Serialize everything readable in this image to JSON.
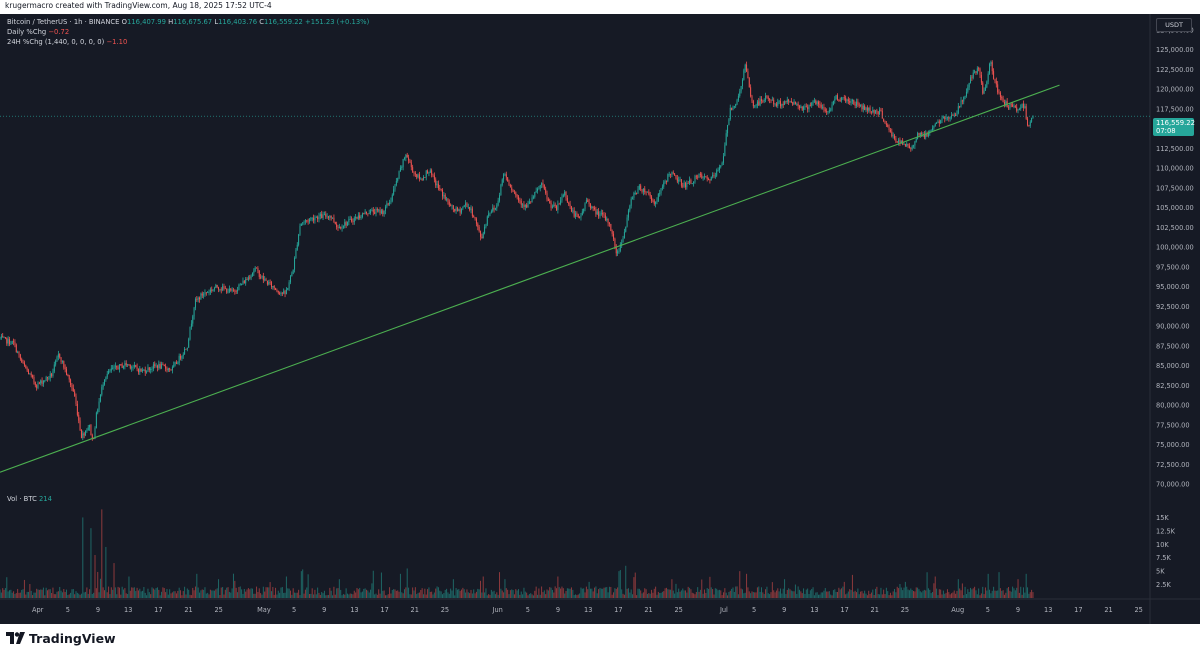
{
  "header": {
    "credit": "krugermacro created with TradingView.com, Aug 18, 2025 17:52 UTC-4"
  },
  "legend": {
    "symbol": "Bitcoin / TetherUS · 1h · BINANCE",
    "o_label": "O",
    "o_value": "116,407.99",
    "h_label": "H",
    "h_value": "116,675.67",
    "l_label": "L",
    "l_value": "116,403.76",
    "c_label": "C",
    "c_value": "116,559.22",
    "change": "+151.23 (+0.13%)",
    "daily_label": "Daily %Chg",
    "daily_value": "−0.72",
    "h24_label": "24H %Chg (1,440, 0, 0, 0, 0)",
    "h24_value": "−1.10",
    "vol_label": "Vol · BTC",
    "vol_value": "214"
  },
  "currency_badge": "USDT",
  "last_price": {
    "price": "116,559.22",
    "countdown": "07:08"
  },
  "footer": {
    "brand": "TradingView"
  },
  "colors": {
    "background": "#161a25",
    "up": "#26a69a",
    "down": "#ef5350",
    "trendline": "#4caf50",
    "axis_text": "#b2b5be"
  },
  "chart_data": {
    "type": "candlestick",
    "title": "Bitcoin / TetherUS · 1h · BINANCE",
    "xlabel": "",
    "ylabel": "",
    "y_axis_side": "right",
    "ylim": [
      69000,
      129500
    ],
    "y_ticks": [
      70000,
      72500,
      75000,
      77500,
      80000,
      82500,
      85000,
      87500,
      90000,
      92500,
      95000,
      97500,
      100000,
      102500,
      105000,
      107500,
      110000,
      112500,
      115000,
      117500,
      120000,
      122500,
      125000,
      127500
    ],
    "y_tick_labels": [
      "70,000.00",
      "72,500.00",
      "75,000.00",
      "77,500.00",
      "80,000.00",
      "82,500.00",
      "85,000.00",
      "87,500.00",
      "90,000.00",
      "92,500.00",
      "95,000.00",
      "97,500.00",
      "100,000.00",
      "102,500.00",
      "105,000.00",
      "107,500.00",
      "110,000.00",
      "112,500.00",
      "115,000.00",
      "117,500.00",
      "120,000.00",
      "122,500.00",
      "125,000.00",
      "127,500.00"
    ],
    "x_ticks": [
      {
        "day": 0,
        "label": "Apr"
      },
      {
        "day": 4,
        "label": "5"
      },
      {
        "day": 8,
        "label": "9"
      },
      {
        "day": 12,
        "label": "13"
      },
      {
        "day": 16,
        "label": "17"
      },
      {
        "day": 20,
        "label": "21"
      },
      {
        "day": 24,
        "label": "25"
      },
      {
        "day": 30,
        "label": "May"
      },
      {
        "day": 34,
        "label": "5"
      },
      {
        "day": 38,
        "label": "9"
      },
      {
        "day": 42,
        "label": "13"
      },
      {
        "day": 46,
        "label": "17"
      },
      {
        "day": 50,
        "label": "21"
      },
      {
        "day": 54,
        "label": "25"
      },
      {
        "day": 61,
        "label": "Jun"
      },
      {
        "day": 65,
        "label": "5"
      },
      {
        "day": 69,
        "label": "9"
      },
      {
        "day": 73,
        "label": "13"
      },
      {
        "day": 77,
        "label": "17"
      },
      {
        "day": 81,
        "label": "21"
      },
      {
        "day": 85,
        "label": "25"
      },
      {
        "day": 91,
        "label": "Jul"
      },
      {
        "day": 95,
        "label": "5"
      },
      {
        "day": 99,
        "label": "9"
      },
      {
        "day": 103,
        "label": "13"
      },
      {
        "day": 107,
        "label": "17"
      },
      {
        "day": 111,
        "label": "21"
      },
      {
        "day": 115,
        "label": "25"
      },
      {
        "day": 122,
        "label": "Aug"
      },
      {
        "day": 126,
        "label": "5"
      },
      {
        "day": 130,
        "label": "9"
      },
      {
        "day": 134,
        "label": "13"
      },
      {
        "day": 138,
        "label": "17"
      },
      {
        "day": 142,
        "label": "21"
      },
      {
        "day": 146,
        "label": "25"
      }
    ],
    "x_day_range": [
      -5,
      147.5
    ],
    "price_path": [
      [
        -5,
        88500
      ],
      [
        -3,
        87800
      ],
      [
        -2,
        85500
      ],
      [
        0,
        82500
      ],
      [
        2,
        83800
      ],
      [
        3,
        86500
      ],
      [
        4,
        84000
      ],
      [
        5,
        81500
      ],
      [
        6,
        76000
      ],
      [
        7,
        77500
      ],
      [
        7.5,
        75300
      ],
      [
        8,
        79000
      ],
      [
        9,
        83500
      ],
      [
        10,
        84500
      ],
      [
        12,
        85200
      ],
      [
        14,
        84300
      ],
      [
        16,
        85000
      ],
      [
        18,
        84500
      ],
      [
        20,
        87500
      ],
      [
        21,
        93000
      ],
      [
        22,
        94000
      ],
      [
        24,
        95000
      ],
      [
        26,
        94300
      ],
      [
        28,
        96000
      ],
      [
        29,
        97300
      ],
      [
        30,
        96000
      ],
      [
        32,
        94500
      ],
      [
        33,
        94000
      ],
      [
        34,
        97000
      ],
      [
        35,
        103000
      ],
      [
        37,
        103800
      ],
      [
        39,
        104000
      ],
      [
        40,
        102500
      ],
      [
        42,
        103500
      ],
      [
        44,
        104500
      ],
      [
        46,
        104500
      ],
      [
        47,
        106000
      ],
      [
        48,
        109000
      ],
      [
        49,
        111800
      ],
      [
        50,
        109500
      ],
      [
        51,
        108500
      ],
      [
        52,
        109800
      ],
      [
        53,
        108000
      ],
      [
        55,
        105000
      ],
      [
        56,
        104500
      ],
      [
        57,
        105500
      ],
      [
        58,
        104000
      ],
      [
        59,
        101000
      ],
      [
        60,
        104500
      ],
      [
        61,
        105000
      ],
      [
        62,
        109500
      ],
      [
        63,
        107500
      ],
      [
        64,
        106000
      ],
      [
        65,
        105000
      ],
      [
        67,
        108000
      ],
      [
        68,
        105500
      ],
      [
        69,
        104800
      ],
      [
        70,
        107000
      ],
      [
        71,
        104500
      ],
      [
        72,
        103500
      ],
      [
        73,
        106000
      ],
      [
        74,
        104500
      ],
      [
        75,
        104000
      ],
      [
        76,
        103000
      ],
      [
        77,
        99000
      ],
      [
        78,
        102000
      ],
      [
        79,
        106500
      ],
      [
        80,
        107500
      ],
      [
        81,
        107000
      ],
      [
        82,
        105500
      ],
      [
        83,
        107500
      ],
      [
        84,
        109500
      ],
      [
        85,
        108500
      ],
      [
        86,
        107800
      ],
      [
        88,
        109000
      ],
      [
        89,
        108500
      ],
      [
        90,
        109000
      ],
      [
        91,
        111000
      ],
      [
        92,
        117500
      ],
      [
        93,
        118500
      ],
      [
        94,
        123000
      ],
      [
        95,
        117800
      ],
      [
        97,
        119000
      ],
      [
        98,
        118000
      ],
      [
        100,
        118500
      ],
      [
        102,
        117500
      ],
      [
        103,
        118500
      ],
      [
        105,
        117000
      ],
      [
        106,
        119000
      ],
      [
        108,
        118500
      ],
      [
        110,
        117500
      ],
      [
        112,
        117000
      ],
      [
        113,
        114800
      ],
      [
        114,
        113500
      ],
      [
        116,
        112500
      ],
      [
        117,
        114500
      ],
      [
        118,
        114000
      ],
      [
        119,
        115500
      ],
      [
        121,
        116500
      ],
      [
        122,
        117000
      ],
      [
        123,
        119000
      ],
      [
        124,
        121500
      ],
      [
        125,
        122500
      ],
      [
        125.5,
        119500
      ],
      [
        126,
        120500
      ],
      [
        126.5,
        124200
      ],
      [
        127,
        121000
      ],
      [
        128,
        118500
      ],
      [
        129,
        117800
      ],
      [
        130,
        117500
      ],
      [
        131,
        118000
      ],
      [
        131.5,
        115200
      ],
      [
        132,
        116560
      ]
    ],
    "trendline": {
      "from": {
        "day": -5,
        "price": 71500
      },
      "to": {
        "day": 135.5,
        "price": 120500
      }
    },
    "volume": {
      "ylim": [
        0,
        17500
      ],
      "y_ticks": [
        2500,
        5000,
        7500,
        10000,
        12500,
        15000
      ],
      "y_tick_labels": [
        "2.5K",
        "5K",
        "7.5K",
        "10K",
        "12.5K",
        "15K"
      ],
      "baseline": 1200,
      "spikes": [
        {
          "day": 6,
          "value": 15000
        },
        {
          "day": 7,
          "value": 13000
        },
        {
          "day": 7.5,
          "value": 8000
        },
        {
          "day": 8.5,
          "value": 16500
        },
        {
          "day": 9,
          "value": 9500
        },
        {
          "day": 10,
          "value": 6500
        },
        {
          "day": 12,
          "value": 4000
        },
        {
          "day": 21,
          "value": 4500
        },
        {
          "day": 24,
          "value": 3500
        },
        {
          "day": 33,
          "value": 4000
        },
        {
          "day": 35,
          "value": 5000
        },
        {
          "day": 40,
          "value": 3500
        },
        {
          "day": 48,
          "value": 4500
        },
        {
          "day": 49,
          "value": 5500
        },
        {
          "day": 55,
          "value": 3500
        },
        {
          "day": 59,
          "value": 4000
        },
        {
          "day": 62,
          "value": 3500
        },
        {
          "day": 69,
          "value": 4000
        },
        {
          "day": 73,
          "value": 3000
        },
        {
          "day": 77,
          "value": 5000
        },
        {
          "day": 78,
          "value": 6000
        },
        {
          "day": 84,
          "value": 3500
        },
        {
          "day": 93,
          "value": 5000
        },
        {
          "day": 94,
          "value": 4500
        },
        {
          "day": 99,
          "value": 3500
        },
        {
          "day": 107,
          "value": 3000
        },
        {
          "day": 115,
          "value": 3000
        },
        {
          "day": 119,
          "value": 4000
        },
        {
          "day": 122,
          "value": 3500
        },
        {
          "day": 126,
          "value": 4500
        },
        {
          "day": 130,
          "value": 3500
        },
        {
          "day": 131,
          "value": 4500
        }
      ]
    }
  }
}
